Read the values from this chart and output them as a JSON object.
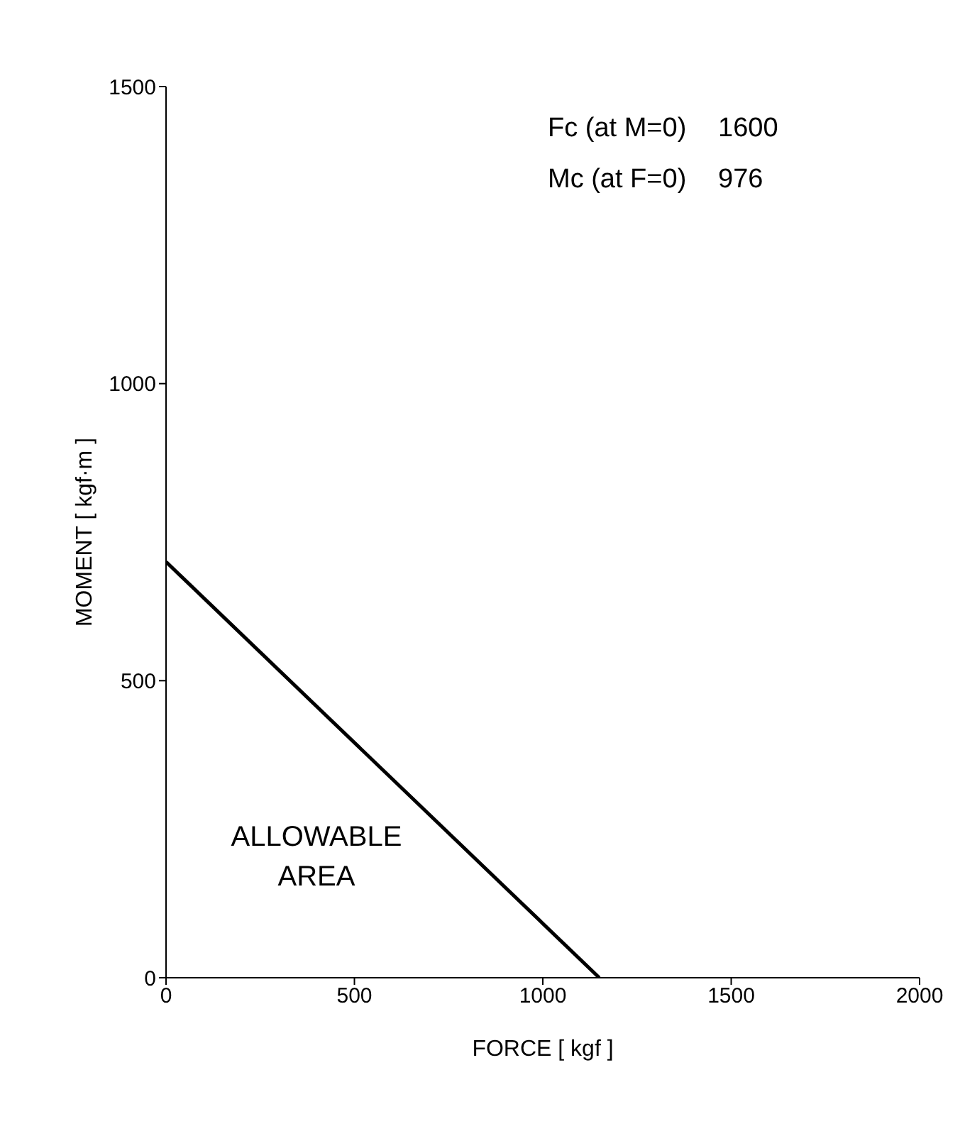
{
  "chart_data": {
    "type": "line",
    "xlabel": "FORCE [ kgf ]",
    "ylabel": "MOMENT [ kgf·m ]",
    "x": [
      0,
      1150
    ],
    "series": [
      {
        "color": "#000000",
        "values": [
          700,
          0
        ]
      }
    ],
    "xlim": [
      0,
      2000
    ],
    "xticks": [
      0,
      500,
      1000,
      1500,
      2000
    ],
    "ylim": [
      0,
      1500
    ],
    "yticks": [
      0,
      500,
      1000,
      1500
    ],
    "grid": false,
    "marker": "none",
    "line_style": "solid",
    "annotations": [
      "Fc (at M=0)  1600",
      "Mc (at F=0)  976",
      "ALLOWABLE AREA"
    ]
  }
}
